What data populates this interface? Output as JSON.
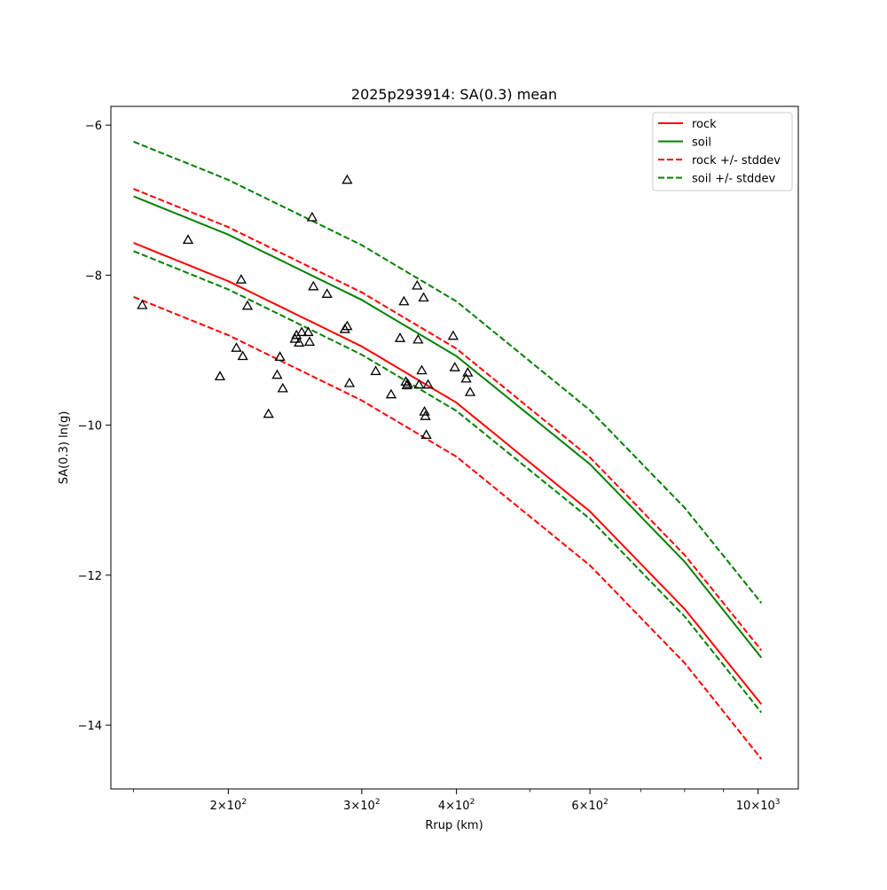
{
  "chart_data": {
    "type": "line",
    "title": "2025p293914: SA(0.3) mean",
    "xlabel": "Rrup (km)",
    "ylabel": "SA(0.3) ln(g)",
    "xscale": "log",
    "xlim": [
      140,
      1130
    ],
    "ylim": [
      -14.85,
      -5.75
    ],
    "x_ticks": [
      {
        "value": 200,
        "base": "2",
        "exp": "2"
      },
      {
        "value": 300,
        "base": "3",
        "exp": "2"
      },
      {
        "value": 400,
        "base": "4",
        "exp": "2"
      },
      {
        "value": 600,
        "base": "6",
        "exp": "2"
      },
      {
        "value": 1000,
        "base": "10",
        "exp": "3"
      }
    ],
    "y_ticks": [
      {
        "value": -6,
        "label": "−6"
      },
      {
        "value": -8,
        "label": "−8"
      },
      {
        "value": -10,
        "label": "−10"
      },
      {
        "value": -12,
        "label": "−12"
      },
      {
        "value": -14,
        "label": "−14"
      }
    ],
    "grid": false,
    "legend_position": "top-right",
    "series": [
      {
        "name": "rock",
        "color": "#ff0000",
        "dash": "solid",
        "x": [
          150,
          200,
          300,
          400,
          600,
          800,
          1010
        ],
        "y": [
          -7.57,
          -8.08,
          -8.95,
          -9.7,
          -11.15,
          -12.45,
          -13.72
        ]
      },
      {
        "name": "soil",
        "color": "#008000",
        "dash": "solid",
        "x": [
          150,
          200,
          300,
          400,
          600,
          800,
          1010
        ],
        "y": [
          -6.95,
          -7.46,
          -8.33,
          -9.08,
          -10.52,
          -11.82,
          -13.1
        ]
      },
      {
        "name": "rock +/- stddev",
        "color": "#ff0000",
        "dash": "dashed",
        "x": [
          150,
          200,
          300,
          400,
          600,
          800,
          1010
        ],
        "y": [
          -6.85,
          -7.36,
          -8.23,
          -8.98,
          -10.43,
          -11.73,
          -13.0
        ]
      },
      {
        "name": "",
        "color": "#ff0000",
        "dash": "dashed",
        "x": [
          150,
          200,
          300,
          400,
          600,
          800,
          1010
        ],
        "y": [
          -8.29,
          -8.8,
          -9.67,
          -10.42,
          -11.87,
          -13.17,
          -14.45
        ]
      },
      {
        "name": "soil +/- stddev",
        "color": "#008000",
        "dash": "dashed",
        "x": [
          150,
          200,
          300,
          400,
          600,
          800,
          1010
        ],
        "y": [
          -6.22,
          -6.73,
          -7.6,
          -8.35,
          -9.8,
          -11.1,
          -12.37
        ]
      },
      {
        "name": "",
        "color": "#008000",
        "dash": "dashed",
        "x": [
          150,
          200,
          300,
          400,
          600,
          800,
          1010
        ],
        "y": [
          -7.68,
          -8.19,
          -9.06,
          -9.81,
          -11.25,
          -12.55,
          -13.83
        ]
      }
    ],
    "legend": [
      {
        "label": "rock",
        "color": "#ff0000",
        "dash": "solid"
      },
      {
        "label": "soil",
        "color": "#008000",
        "dash": "solid"
      },
      {
        "label": "rock +/- stddev",
        "color": "#ff0000",
        "dash": "dashed"
      },
      {
        "label": "soil +/- stddev",
        "color": "#008000",
        "dash": "dashed"
      }
    ],
    "observations": {
      "marker": "triangle",
      "color": "#000000",
      "points": [
        [
          154,
          -8.4
        ],
        [
          177,
          -7.53
        ],
        [
          195,
          -9.35
        ],
        [
          205,
          -8.97
        ],
        [
          208,
          -8.06
        ],
        [
          209,
          -9.08
        ],
        [
          212,
          -8.41
        ],
        [
          226,
          -9.85
        ],
        [
          232,
          -9.33
        ],
        [
          234,
          -9.09
        ],
        [
          236,
          -9.51
        ],
        [
          245,
          -8.85
        ],
        [
          246,
          -8.8
        ],
        [
          248,
          -8.9
        ],
        [
          250,
          -8.76
        ],
        [
          255,
          -8.76
        ],
        [
          256,
          -8.89
        ],
        [
          258,
          -7.23
        ],
        [
          259,
          -8.15
        ],
        [
          270,
          -8.25
        ],
        [
          285,
          -8.72
        ],
        [
          287,
          -6.73
        ],
        [
          287,
          -8.68
        ],
        [
          289,
          -9.44
        ],
        [
          313,
          -9.28
        ],
        [
          328,
          -9.59
        ],
        [
          337,
          -8.84
        ],
        [
          341,
          -8.35
        ],
        [
          343,
          -9.42
        ],
        [
          344,
          -9.47
        ],
        [
          345,
          -9.45
        ],
        [
          355,
          -8.14
        ],
        [
          356,
          -8.86
        ],
        [
          357,
          -9.46
        ],
        [
          360,
          -9.27
        ],
        [
          362,
          -8.3
        ],
        [
          363,
          -9.82
        ],
        [
          364,
          -9.88
        ],
        [
          365,
          -10.13
        ],
        [
          367,
          -9.46
        ],
        [
          396,
          -8.81
        ],
        [
          398,
          -9.23
        ],
        [
          412,
          -9.38
        ],
        [
          414,
          -9.3
        ],
        [
          417,
          -9.56
        ]
      ]
    }
  }
}
